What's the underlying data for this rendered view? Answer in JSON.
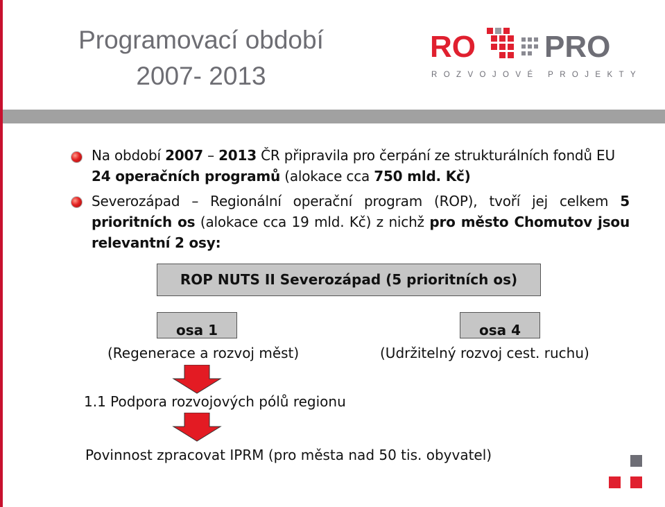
{
  "title": {
    "line1": "Programovací období",
    "line2": "2007- 2013"
  },
  "logo": {
    "left_word": "RO",
    "right_word": "PRO",
    "tagline": "ROZVOJOVÉ PROJEKTY",
    "colors": {
      "red": "#e0202f",
      "gray": "#6e6e76"
    }
  },
  "bullets": [
    {
      "t1": "Na období ",
      "b1": "2007",
      "t2": " – ",
      "b2": "2013",
      "t3": " ČR připravila pro čerpání ze strukturálních fondů EU ",
      "b3": "24 operačních programů",
      "t4": " (alokace cca ",
      "b4": "750 mld. Kč)"
    },
    {
      "t1": "Severozápad – Regionální operační program (ROP), tvoří jej celkem ",
      "b1": "5 prioritních os",
      "t2": " (alokace cca 19 mld. Kč) z nichž ",
      "b2": "pro město Chomutov jsou relevantní 2 osy:"
    }
  ],
  "rop_box": "ROP NUTS II Severozápad (5 prioritních os)",
  "axis1": {
    "label": "osa 1",
    "desc": "(Regenerace a rozvoj měst)"
  },
  "axis4": {
    "label": "osa 4",
    "desc": "(Udržitelný rozvoj cest. ruchu)"
  },
  "subpriority": "1.1 Podpora rozvojových pólů regionu",
  "obligation": "Povinnost zpracovat IPRM (pro města nad 50 tis. obyvatel)",
  "colors": {
    "accent_red": "#c8102e",
    "arrow_red": "#e31b23",
    "box_gray": "#c6c6c6",
    "band_gray": "#a1a1a1",
    "title_gray": "#6d6d73"
  }
}
